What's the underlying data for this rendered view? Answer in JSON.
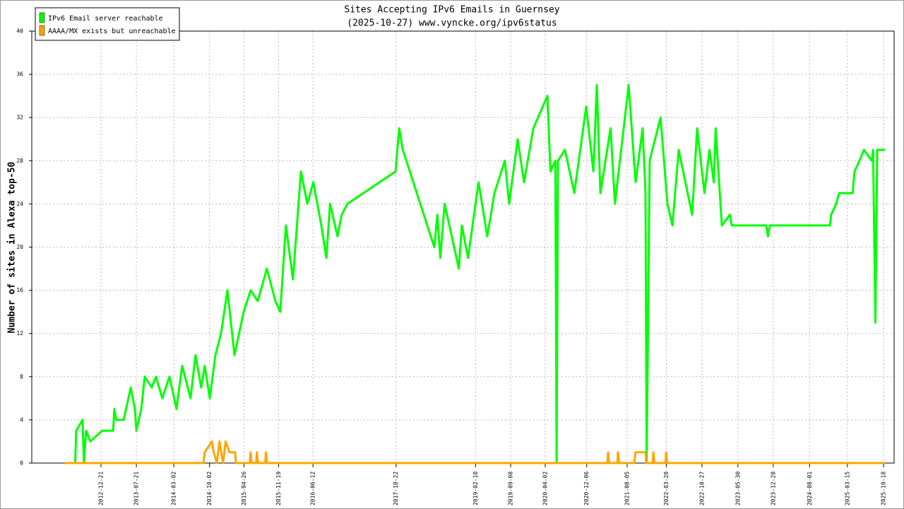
{
  "chart_data": {
    "type": "line",
    "title": "Sites Accepting IPv6 Emails in Guernsey",
    "subtitle": "(2025-10-27) www.vyncke.org/ipv6status",
    "y_label": "Number of sites in Alexa top-50",
    "xlim": [
      "2011-11-03",
      "2025-12-20"
    ],
    "xticks": [
      "2012-12-21",
      "2013-07-21",
      "2014-03-02",
      "2014-10-02",
      "2015-04-26",
      "2015-11-19",
      "2016-06-12",
      "2017-10-22",
      "2019-02-10",
      "2019-09-08",
      "2020-04-02",
      "2020-12-06",
      "2021-08-05",
      "2022-03-28",
      "2022-10-27",
      "2023-05-30",
      "2023-12-28",
      "2024-08-01",
      "2025-03-15",
      "2025-10-18"
    ],
    "ylim": [
      0,
      40
    ],
    "yticks": [
      0,
      4,
      8,
      12,
      16,
      20,
      24,
      28,
      32,
      36,
      40
    ],
    "grid": true,
    "legend": "top-left",
    "series": [
      {
        "name": "IPv6 Email server reachable",
        "color": "#00ff00",
        "x": [
          "2012-05-19",
          "2012-07-20",
          "2012-07-26",
          "2012-09-02",
          "2012-09-10",
          "2012-09-23",
          "2012-10-18",
          "2012-12-28",
          "2013-03-04",
          "2013-03-11",
          "2013-03-22",
          "2013-05-06",
          "2013-06-17",
          "2013-07-12",
          "2013-07-21",
          "2013-08-19",
          "2013-09-09",
          "2013-10-21",
          "2013-11-15",
          "2013-12-23",
          "2014-02-04",
          "2014-03-18",
          "2014-04-21",
          "2014-06-10",
          "2014-07-10",
          "2014-08-13",
          "2014-09-03",
          "2014-10-03",
          "2014-11-06",
          "2014-12-10",
          "2015-01-17",
          "2015-02-28",
          "2015-04-24",
          "2015-06-05",
          "2015-07-17",
          "2015-09-10",
          "2015-10-31",
          "2015-11-29",
          "2016-01-02",
          "2016-02-13",
          "2016-04-01",
          "2016-05-09",
          "2016-06-14",
          "2016-08-01",
          "2016-08-31",
          "2016-09-22",
          "2016-11-06",
          "2016-12-01",
          "2017-01-04",
          "2017-10-19",
          "2017-11-10",
          "2017-12-02",
          "2018-06-08",
          "2018-06-26",
          "2018-07-14",
          "2018-08-09",
          "2018-11-02",
          "2018-11-20",
          "2018-12-27",
          "2019-02-28",
          "2019-04-21",
          "2019-06-03",
          "2019-08-04",
          "2019-08-30",
          "2019-10-20",
          "2019-11-27",
          "2020-01-22",
          "2020-04-15",
          "2020-05-03",
          "2020-06-02",
          "2020-06-09",
          "2020-06-17",
          "2020-07-29",
          "2020-09-23",
          "2020-12-03",
          "2021-01-15",
          "2021-02-05",
          "2021-02-26",
          "2021-04-28",
          "2021-05-24",
          "2021-08-14",
          "2021-09-25",
          "2021-11-06",
          "2021-11-23",
          "2021-11-30",
          "2021-12-18",
          "2022-02-21",
          "2022-04-03",
          "2022-05-03",
          "2022-06-10",
          "2022-08-29",
          "2022-09-28",
          "2022-11-11",
          "2022-12-11",
          "2023-01-06",
          "2023-01-17",
          "2023-02-23",
          "2023-04-12",
          "2023-04-23",
          "2023-11-15",
          "2023-11-26",
          "2023-12-07",
          "2024-12-01",
          "2024-12-08",
          "2025-01-07",
          "2025-01-25",
          "2025-04-16",
          "2025-04-27",
          "2025-05-27",
          "2025-06-22",
          "2025-08-08",
          "2025-08-16",
          "2025-08-30",
          "2025-09-10",
          "2025-10-27"
        ],
        "values": [
          0,
          0,
          3,
          4,
          0,
          3,
          2,
          3,
          3,
          5,
          4,
          4,
          7,
          5,
          3,
          5,
          8,
          7,
          8,
          6,
          8,
          5,
          9,
          6,
          10,
          7,
          9,
          6,
          10,
          12,
          16,
          10,
          14,
          16,
          15,
          18,
          15,
          14,
          22,
          17,
          27,
          24,
          26,
          22,
          19,
          24,
          21,
          23,
          24,
          27,
          31,
          29,
          20,
          23,
          19,
          24,
          18,
          22,
          19,
          26,
          21,
          25,
          28,
          24,
          30,
          26,
          31,
          34,
          27,
          28,
          0,
          28,
          29,
          25,
          33,
          27,
          35,
          25,
          31,
          24,
          35,
          26,
          31,
          25,
          0,
          28,
          32,
          24,
          22,
          29,
          23,
          31,
          25,
          29,
          26,
          31,
          22,
          23,
          22,
          22,
          21,
          22,
          22,
          23,
          24,
          25,
          25,
          27,
          28,
          29,
          28,
          29,
          13,
          29,
          29
        ]
      },
      {
        "name": "AAAA/MX exists but unreachable",
        "color": "#ffa500",
        "x": [
          "2012-05-19",
          "2014-08-26",
          "2014-09-03",
          "2014-10-16",
          "2014-10-27",
          "2014-11-15",
          "2014-11-30",
          "2014-12-22",
          "2015-01-06",
          "2015-01-29",
          "2015-03-04",
          "2015-03-08",
          "2015-05-31",
          "2015-06-04",
          "2015-06-11",
          "2015-07-08",
          "2015-07-12",
          "2015-07-19",
          "2015-08-31",
          "2015-09-04",
          "2015-09-11",
          "2021-04-09",
          "2021-04-13",
          "2021-04-20",
          "2021-06-08",
          "2021-06-11",
          "2021-06-19",
          "2021-09-17",
          "2021-09-24",
          "2021-11-23",
          "2021-11-27",
          "2022-01-05",
          "2022-01-09",
          "2022-01-16",
          "2022-03-22",
          "2022-03-26",
          "2022-04-02",
          "2025-10-27"
        ],
        "values": [
          0,
          0,
          1,
          2,
          1,
          0,
          2,
          0,
          2,
          1,
          1,
          0,
          0,
          1,
          0,
          0,
          1,
          0,
          0,
          1,
          0,
          0,
          1,
          0,
          0,
          1,
          0,
          0,
          1,
          1,
          0,
          0,
          1,
          0,
          0,
          1,
          0,
          0
        ]
      }
    ]
  }
}
